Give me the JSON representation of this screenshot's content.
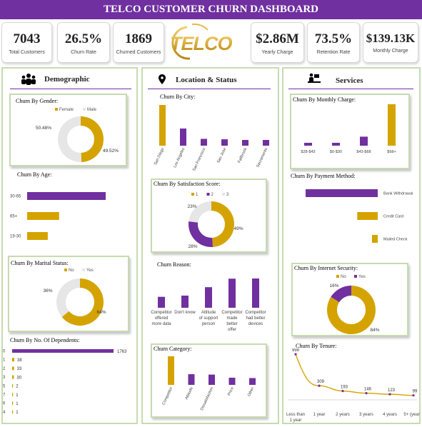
{
  "title": "TELCO CUSTOMER CHURN DASHBOARD",
  "colors": {
    "purple": "#7030a0",
    "gold": "#d4a300",
    "gray": "#e6e6e6",
    "border": "#c6dbb0"
  },
  "logo": {
    "text": "TELCO"
  },
  "kpis": [
    {
      "value": "7043",
      "label": "Total Customers"
    },
    {
      "value": "26.5%",
      "label": "Churn Rate"
    },
    {
      "value": "1869",
      "label": "Churned Customers"
    },
    {
      "value": "$2.86M",
      "label": "Yearly Charge"
    },
    {
      "value": "73.5%",
      "label": "Retention Rate"
    },
    {
      "value": "$139.13K",
      "label": "Monthly Charge"
    }
  ],
  "sections": {
    "demographic": {
      "title": "Demographic",
      "icon": "people-icon"
    },
    "location": {
      "title": "Location & Status",
      "icon": "map-pin-icon"
    },
    "services": {
      "title": "Services",
      "icon": "service-desk-icon"
    }
  },
  "chart_data": [
    {
      "id": "gender",
      "type": "pie",
      "title": "Churn By Gender:",
      "labels": [
        "Female",
        "Male"
      ],
      "values": [
        49.52,
        50.48
      ],
      "value_labels": [
        "49.52%",
        "50.48%"
      ],
      "colors": [
        "#d4a300",
        "#e6e6e6"
      ],
      "legend": "top"
    },
    {
      "id": "age",
      "type": "bar",
      "orientation": "horizontal",
      "title": "Churn By Age:",
      "categories": [
        "30-65",
        "65+",
        "19-30"
      ],
      "values": [
        1180,
        480,
        310
      ],
      "colors": [
        "#7030a0",
        "#d4a300",
        "#d4a300"
      ]
    },
    {
      "id": "marital",
      "type": "pie",
      "title": "Churn By Marital Status:",
      "labels": [
        "No",
        "Yes"
      ],
      "values": [
        64,
        36
      ],
      "value_labels": [
        "64%",
        "36%"
      ],
      "colors": [
        "#d4a300",
        "#e6e6e6"
      ],
      "legend": "top"
    },
    {
      "id": "dependents",
      "type": "bar",
      "orientation": "horizontal",
      "title": "Churn By No. Of Dependents:",
      "categories": [
        "0",
        "1",
        "2",
        "3",
        "5",
        "7",
        "6",
        "4"
      ],
      "values": [
        1763,
        38,
        33,
        30,
        2,
        1,
        1,
        1
      ],
      "value_labels": [
        "1763",
        "38",
        "33",
        "30",
        "2",
        "1",
        "1",
        "1"
      ]
    },
    {
      "id": "city",
      "type": "bar",
      "title": "Churn By City:",
      "categories": [
        "San Diego",
        "Los Angeles",
        "San Francisco",
        "San Jose",
        "Fallbrook",
        "Sacramento"
      ],
      "values": [
        185,
        78,
        31,
        29,
        26,
        26
      ],
      "colors": [
        "#d4a300",
        "#7030a0",
        "#7030a0",
        "#7030a0",
        "#7030a0",
        "#7030a0"
      ]
    },
    {
      "id": "satisfaction",
      "type": "pie",
      "title": "Churn By Satisfaction Score:",
      "labels": [
        "1",
        "2",
        "3"
      ],
      "values": [
        49,
        28,
        23
      ],
      "value_labels": [
        "49%",
        "28%",
        "23%"
      ],
      "colors": [
        "#d4a300",
        "#7030a0",
        "#e6e6e6"
      ],
      "legend": "top"
    },
    {
      "id": "reason",
      "type": "bar",
      "title": "Churn Reason:",
      "categories": [
        "Competitor offered more data",
        "Don't know",
        "Attitude of support person",
        "Competitor made better offer",
        "Competitor had better devices"
      ],
      "values": [
        117,
        130,
        220,
        311,
        313
      ]
    },
    {
      "id": "category",
      "type": "bar",
      "title": "Churn Category:",
      "categories": [
        "Competitor",
        "Attitude",
        "Dissatisfaction",
        "Price",
        "Other"
      ],
      "values": [
        841,
        314,
        303,
        211,
        200
      ],
      "colors": [
        "#d4a300",
        "#7030a0",
        "#7030a0",
        "#7030a0",
        "#7030a0"
      ]
    },
    {
      "id": "monthly",
      "type": "bar",
      "title": "Churn By Monthly Charge:",
      "categories": [
        "$28-$43",
        "$0-$30",
        "$43-$68",
        "$68+"
      ],
      "values": [
        80,
        80,
        250,
        1150
      ],
      "colors": [
        "#7030a0",
        "#7030a0",
        "#7030a0",
        "#d4a300"
      ]
    },
    {
      "id": "payment",
      "type": "bar",
      "orientation": "horizontal",
      "title": "Churn By Payment Method:",
      "categories": [
        "Bank Withdrawal",
        "Credit Card",
        "Mailed Check"
      ],
      "values": [
        1515,
        430,
        120
      ],
      "colors": [
        "#7030a0",
        "#d4a300",
        "#d4a300"
      ]
    },
    {
      "id": "security",
      "type": "pie",
      "title": "Churn By Internet Security:",
      "labels": [
        "No",
        "Yes"
      ],
      "values": [
        84,
        16
      ],
      "value_labels": [
        "84%",
        "16%"
      ],
      "colors": [
        "#d4a300",
        "#7030a0"
      ],
      "legend": "top"
    },
    {
      "id": "tenure",
      "type": "line",
      "title": "Churn By Tenure:",
      "categories": [
        "Less than 1 year",
        "1 year",
        "2 years",
        "3 years",
        "4 years",
        "5+ (years)"
      ],
      "values": [
        999,
        309,
        193,
        146,
        123,
        99
      ],
      "value_labels": [
        "999",
        "309",
        "193",
        "146",
        "123",
        "99"
      ]
    }
  ]
}
